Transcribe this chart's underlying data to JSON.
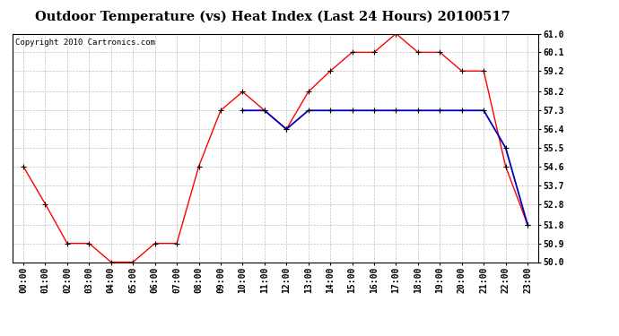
{
  "title": "Outdoor Temperature (vs) Heat Index (Last 24 Hours) 20100517",
  "copyright": "Copyright 2010 Cartronics.com",
  "hours": [
    "00:00",
    "01:00",
    "02:00",
    "03:00",
    "04:00",
    "05:00",
    "06:00",
    "07:00",
    "08:00",
    "09:00",
    "10:00",
    "11:00",
    "12:00",
    "13:00",
    "14:00",
    "15:00",
    "16:00",
    "17:00",
    "18:00",
    "19:00",
    "20:00",
    "21:00",
    "22:00",
    "23:00"
  ],
  "temp": [
    54.6,
    52.8,
    50.9,
    50.9,
    50.0,
    50.0,
    50.9,
    50.9,
    54.6,
    57.3,
    58.2,
    57.3,
    56.4,
    58.2,
    59.2,
    60.1,
    60.1,
    61.0,
    60.1,
    60.1,
    59.2,
    59.2,
    54.6,
    51.8
  ],
  "heat_index": [
    null,
    null,
    null,
    null,
    null,
    null,
    null,
    null,
    null,
    null,
    57.3,
    57.3,
    56.4,
    57.3,
    57.3,
    57.3,
    57.3,
    57.3,
    57.3,
    57.3,
    57.3,
    57.3,
    55.5,
    51.8
  ],
  "ylim": [
    50.0,
    61.0
  ],
  "yticks": [
    50.0,
    50.9,
    51.8,
    52.8,
    53.7,
    54.6,
    55.5,
    56.4,
    57.3,
    58.2,
    59.2,
    60.1,
    61.0
  ],
  "temp_color": "#FF0000",
  "heat_color": "#0000BB",
  "bg_color": "#FFFFFF",
  "plot_bg_color": "#FFFFFF",
  "grid_color": "#BBBBBB",
  "title_fontsize": 10.5,
  "copyright_fontsize": 6.5,
  "tick_fontsize": 7,
  "marker_size": 2.5,
  "line_width": 1.0
}
